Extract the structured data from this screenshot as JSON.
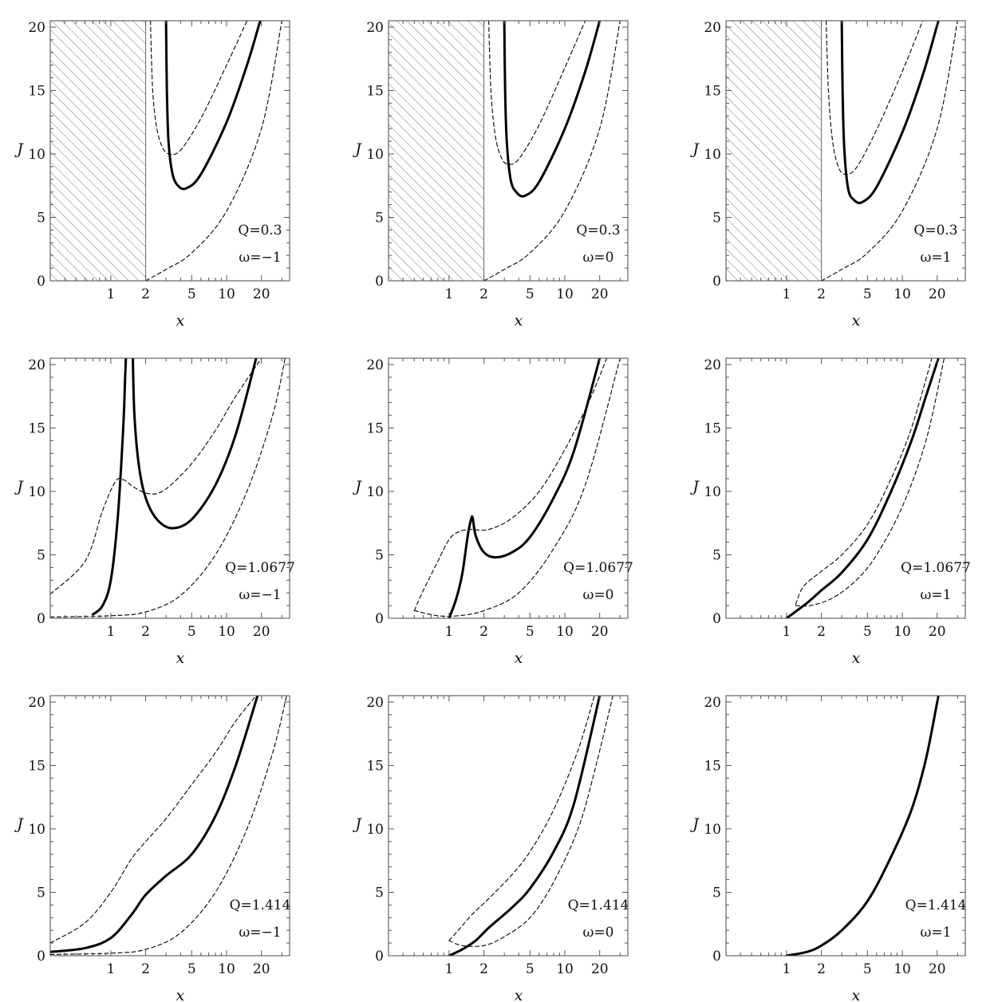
{
  "chart_data": {
    "type": "line",
    "layout": "3x3 grid",
    "x_scale": "log",
    "xlabel": "x",
    "ylabel": "J",
    "xlim": [
      0.3,
      35
    ],
    "ylim": [
      0,
      20.5
    ],
    "x_ticks": [
      1,
      2,
      5,
      10,
      20
    ],
    "y_ticks": [
      0,
      5,
      10,
      15,
      20
    ],
    "grid": false,
    "series_styles": {
      "solid": "thick solid black",
      "dashed": "thin dashed black"
    },
    "colors": {
      "line": "#000000",
      "frame": "#444444",
      "hatch": "#777777"
    },
    "panels": [
      {
        "Q": "Q=0.3",
        "omega": "ω=−1",
        "hatched_region": [
          0.3,
          2
        ],
        "series": [
          {
            "style": "solid",
            "x": [
              3.0,
              3.05,
              3.15,
              3.4,
              3.8,
              4.5,
              6,
              10,
              15,
              19.5
            ],
            "y": [
              20.5,
              15,
              11,
              8.5,
              7.5,
              7.3,
              8.4,
              12.5,
              17,
              20.5
            ]
          },
          {
            "style": "dashed",
            "x": [
              2.2,
              2.3,
              2.5,
              2.8,
              3.2,
              4,
              6,
              10,
              15
            ],
            "y": [
              20.5,
              15,
              12,
              10.5,
              10,
              10.3,
              12.8,
              17,
              20.5
            ]
          },
          {
            "style": "dashed",
            "x": [
              2,
              3,
              5,
              10,
              20,
              30
            ],
            "y": [
              0,
              0.9,
              2.2,
              5.5,
              12,
              20.5
            ]
          }
        ]
      },
      {
        "Q": "Q=0.3",
        "omega": "ω=0",
        "hatched_region": [
          0.3,
          2
        ],
        "series": [
          {
            "style": "solid",
            "x": [
              3.0,
              3.05,
              3.15,
              3.4,
              3.8,
              4.5,
              6,
              10,
              15,
              20
            ],
            "y": [
              20.5,
              15,
              11,
              8,
              7,
              6.7,
              7.8,
              12,
              16.5,
              20.5
            ]
          },
          {
            "style": "dashed",
            "x": [
              2.2,
              2.3,
              2.5,
              2.8,
              3.2,
              4,
              6,
              10,
              15
            ],
            "y": [
              20.5,
              15,
              11.5,
              9.8,
              9.2,
              9.6,
              12.3,
              16.8,
              20.5
            ]
          },
          {
            "style": "dashed",
            "x": [
              2,
              3,
              5,
              10,
              20,
              30
            ],
            "y": [
              0,
              0.9,
              2.2,
              5.5,
              12,
              20.5
            ]
          }
        ]
      },
      {
        "Q": "Q=0.3",
        "omega": "ω=1",
        "hatched_region": [
          0.3,
          2
        ],
        "series": [
          {
            "style": "solid",
            "x": [
              3.0,
              3.05,
              3.15,
              3.4,
              3.8,
              4.5,
              6,
              10,
              15,
              20.5
            ],
            "y": [
              20.5,
              15,
              10.5,
              7.3,
              6.4,
              6.2,
              7.4,
              11.7,
              16.2,
              20.5
            ]
          },
          {
            "style": "dashed",
            "x": [
              2.2,
              2.3,
              2.5,
              2.8,
              3.2,
              4,
              6,
              10,
              15
            ],
            "y": [
              20.5,
              15,
              11,
              9,
              8.4,
              8.9,
              11.9,
              16.5,
              20.5
            ]
          },
          {
            "style": "dashed",
            "x": [
              2,
              3,
              5,
              10,
              20,
              30
            ],
            "y": [
              0,
              0.9,
              2.2,
              5.5,
              12,
              20.5
            ]
          }
        ]
      },
      {
        "Q": "Q=1.0677",
        "omega": "ω=−1",
        "series": [
          {
            "style": "solid",
            "x": [
              0.7,
              0.85,
              1.0,
              1.15,
              1.28,
              1.33,
              1.35
            ],
            "y": [
              0.3,
              1,
              3,
              8,
              15,
              19,
              20.5
            ]
          },
          {
            "style": "solid",
            "x": [
              1.55,
              1.6,
              1.75,
              2.0,
              2.5,
              3.4,
              5,
              8,
              12,
              18
            ],
            "y": [
              20.5,
              16,
              12,
              9.5,
              7.8,
              7.1,
              7.8,
              10.5,
              14.5,
              20.5
            ]
          },
          {
            "style": "dashed",
            "x": [
              0.3,
              0.6,
              0.85,
              1.1,
              1.3,
              1.6,
              2.2,
              3,
              5,
              8,
              12,
              20
            ],
            "y": [
              1.9,
              4.5,
              8.5,
              10.8,
              10.9,
              10.3,
              9.8,
              10.2,
              12.2,
              14.8,
              17.5,
              20.5
            ]
          },
          {
            "style": "dashed",
            "x": [
              0.3,
              1,
              2,
              4,
              8,
              15,
              25,
              32
            ],
            "y": [
              0.1,
              0.2,
              0.5,
              1.8,
              5,
              10,
              16,
              20.5
            ]
          }
        ]
      },
      {
        "Q": "Q=1.0677",
        "omega": "ω=0",
        "series": [
          {
            "style": "solid",
            "x": [
              1.0,
              1.15,
              1.3,
              1.45,
              1.55,
              1.6,
              1.7,
              2.0,
              2.5,
              3.5,
              5,
              8,
              12,
              20
            ],
            "y": [
              0,
              1.5,
              3.5,
              6.5,
              7.8,
              7.9,
              6.5,
              5.2,
              4.8,
              5.2,
              6.4,
              9.5,
              13.2,
              20.5
            ]
          },
          {
            "style": "dashed",
            "x": [
              0.5,
              0.6,
              0.8,
              1.0,
              1.2,
              1.5,
              2.2,
              3.5,
              6,
              10,
              16,
              23
            ],
            "y": [
              0.6,
              2.2,
              4.5,
              6.2,
              6.8,
              7,
              7,
              7.9,
              10,
              13.3,
              17,
              20.5
            ]
          },
          {
            "style": "dashed",
            "x": [
              0.5,
              0.8,
              1.2,
              2,
              4,
              8,
              15,
              30
            ],
            "y": [
              0.6,
              0.2,
              0.2,
              0.6,
              2,
              5.5,
              10.5,
              20.5
            ]
          }
        ]
      },
      {
        "Q": "Q=1.0677",
        "omega": "ω=1",
        "series": [
          {
            "style": "solid",
            "x": [
              1.0,
              1.5,
              2.0,
              3,
              5,
              8,
              12,
              16,
              20.5
            ],
            "y": [
              0,
              1.2,
              2.2,
              3.6,
              6.2,
              10,
              14,
              17.5,
              20.5
            ]
          },
          {
            "style": "dashed",
            "x": [
              1.2,
              1.4,
              2,
              3,
              5,
              8,
              12,
              18
            ],
            "y": [
              1.1,
              2.5,
              3.7,
              5,
              7.4,
              11,
              15,
              20.5
            ]
          },
          {
            "style": "dashed",
            "x": [
              1.2,
              1.6,
              2.5,
              4,
              6,
              10,
              16,
              23
            ],
            "y": [
              1,
              1,
              1.6,
              3,
              5,
              8.8,
              14,
              20.5
            ]
          }
        ]
      },
      {
        "Q": "Q=1.414",
        "omega": "ω=−1",
        "series": [
          {
            "style": "solid",
            "x": [
              0.3,
              0.6,
              1.0,
              1.5,
              2.0,
              3,
              5,
              8,
              12,
              18.5
            ],
            "y": [
              0.3,
              0.6,
              1.4,
              3.2,
              4.8,
              6.3,
              8,
              11,
              15,
              20.5
            ]
          },
          {
            "style": "dashed",
            "x": [
              0.3,
              0.6,
              1,
              1.5,
              2,
              3,
              5,
              8,
              12,
              18
            ],
            "y": [
              1,
              2.6,
              5,
              7.6,
              9,
              10.8,
              13.5,
              16,
              18.5,
              20.5
            ]
          },
          {
            "style": "dashed",
            "x": [
              0.3,
              1,
              2,
              4,
              8,
              15,
              25,
              33
            ],
            "y": [
              0.1,
              0.2,
              0.5,
              1.8,
              5,
              10,
              16,
              20.5
            ]
          }
        ]
      },
      {
        "Q": "Q=1.414",
        "omega": "ω=0",
        "series": [
          {
            "style": "solid",
            "x": [
              1.0,
              1.3,
              1.7,
              2.2,
              3.5,
              5,
              8,
              12,
              20
            ],
            "y": [
              0,
              0.5,
              1.2,
              2.2,
              3.8,
              5.3,
              8.2,
              12,
              20.5
            ]
          },
          {
            "style": "dashed",
            "x": [
              1.0,
              1.2,
              1.6,
              2.2,
              3.5,
              5,
              8,
              13,
              18
            ],
            "y": [
              1.2,
              2,
              3.3,
              4.5,
              6.4,
              8.2,
              11.5,
              16.2,
              20.5
            ]
          },
          {
            "style": "dashed",
            "x": [
              1.0,
              1.3,
              2,
              3,
              5,
              8,
              13,
              18,
              26
            ],
            "y": [
              1.2,
              0.8,
              0.8,
              1.5,
              3,
              5.8,
              10,
              14.5,
              20.5
            ]
          }
        ]
      },
      {
        "Q": "Q=1.414",
        "omega": "ω=1",
        "series": [
          {
            "style": "solid",
            "x": [
              1.0,
              1.5,
              2.0,
              3,
              5,
              8,
              12,
              16,
              20.5
            ],
            "y": [
              0,
              0.3,
              0.8,
              2,
              4.3,
              7.8,
              11.5,
              15.5,
              20.5
            ]
          }
        ]
      }
    ]
  }
}
